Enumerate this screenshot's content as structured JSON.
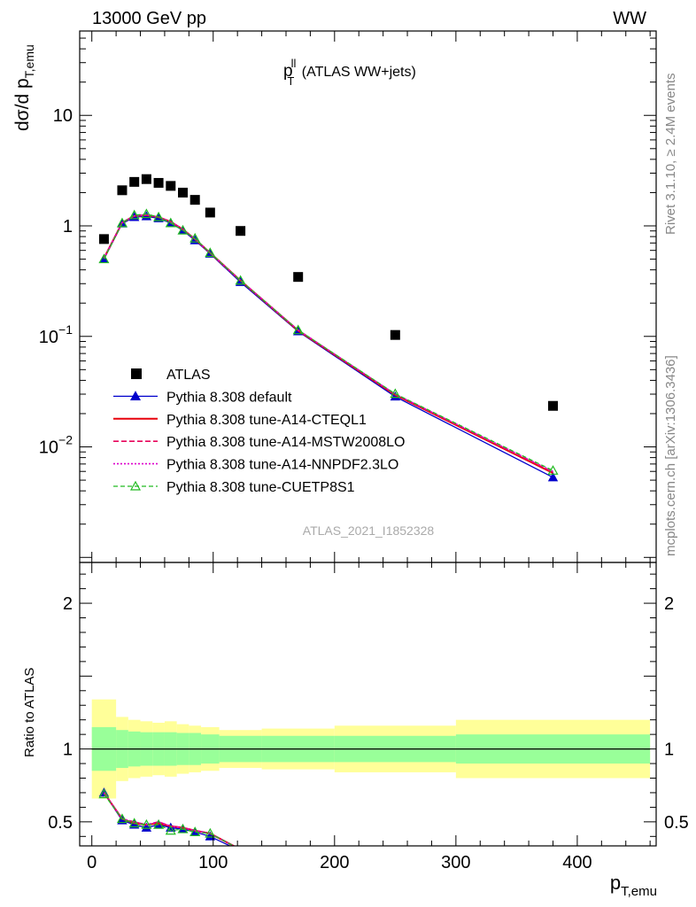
{
  "header": {
    "energy_label": "13000 GeV pp",
    "process_label": "WW"
  },
  "side_labels": {
    "rivet": "Rivet 3.1.10, ≥ 2.4M events",
    "mcplots": "mcplots.cern.ch [arXiv:1306.3436]"
  },
  "watermark": "ATLAS_2021_I1852328",
  "plot_title": {
    "main": "p",
    "sup": "ll",
    "sub": "T",
    "rest": " (ATLAS WW+jets)"
  },
  "colors": {
    "data": "#000000",
    "default": "#0000cc",
    "a14_cteql1": "#e8000b",
    "a14_mstw": "#e8005a",
    "a14_nnpdf": "#dd00cc",
    "cuetp8s1": "#22bb22",
    "band_inner": "#99ff99",
    "band_outer": "#ffff99"
  },
  "chart_data": [
    {
      "type": "line",
      "panel": "main",
      "y_scale": "log",
      "ylabel": {
        "main": "dσ/d p",
        "sub": "T,emu"
      },
      "xlim": [
        -10,
        465
      ],
      "ylim": [
        0.0009,
        58
      ],
      "y_tick_labels": [
        {
          "value": 0.01,
          "base": "10",
          "exp": "−2"
        },
        {
          "value": 0.1,
          "base": "10",
          "exp": "−1"
        },
        {
          "value": 1,
          "base": "1",
          "exp": ""
        },
        {
          "value": 10,
          "base": "10",
          "exp": ""
        }
      ],
      "legend": {
        "placement": "center-left"
      },
      "series": [
        {
          "name": "ATLAS",
          "key": "data",
          "style": "square",
          "x": [
            10,
            25,
            35,
            45,
            55,
            65,
            75,
            85,
            97.5,
            122.5,
            170,
            250,
            380
          ],
          "y": [
            0.76,
            2.1,
            2.5,
            2.65,
            2.45,
            2.3,
            2.0,
            1.72,
            1.32,
            0.9,
            0.345,
            0.103,
            0.0235
          ]
        },
        {
          "name": "Pythia 8.308 default",
          "key": "default",
          "style": "solid-triangle",
          "x": [
            10,
            25,
            35,
            45,
            55,
            65,
            75,
            85,
            97.5,
            122.5,
            170,
            250,
            380
          ],
          "y": [
            0.5,
            1.05,
            1.2,
            1.22,
            1.17,
            1.06,
            0.91,
            0.74,
            0.56,
            0.31,
            0.111,
            0.0285,
            0.0053
          ]
        },
        {
          "name": "Pythia 8.308 tune-A14-CTEQL1",
          "key": "a14_cteql1",
          "style": "solid",
          "x": [
            10,
            25,
            35,
            45,
            55,
            65,
            75,
            85,
            97.5,
            122.5,
            170,
            250,
            380
          ],
          "y": [
            0.51,
            1.07,
            1.23,
            1.25,
            1.2,
            1.09,
            0.93,
            0.76,
            0.57,
            0.32,
            0.113,
            0.0295,
            0.0058
          ]
        },
        {
          "name": "Pythia 8.308 tune-A14-MSTW2008LO",
          "key": "a14_mstw",
          "style": "dashed",
          "x": [
            10,
            25,
            35,
            45,
            55,
            65,
            75,
            85,
            97.5,
            122.5,
            170,
            250,
            380
          ],
          "y": [
            0.51,
            1.07,
            1.23,
            1.25,
            1.2,
            1.09,
            0.93,
            0.76,
            0.57,
            0.32,
            0.114,
            0.0298,
            0.0059
          ]
        },
        {
          "name": "Pythia 8.308 tune-A14-NNPDF2.3LO",
          "key": "a14_nnpdf",
          "style": "dotted",
          "x": [
            10,
            25,
            35,
            45,
            55,
            65,
            75,
            85,
            97.5,
            122.5,
            170,
            250,
            380
          ],
          "y": [
            0.51,
            1.07,
            1.23,
            1.26,
            1.2,
            1.09,
            0.93,
            0.76,
            0.57,
            0.32,
            0.114,
            0.03,
            0.006
          ]
        },
        {
          "name": "Pythia 8.308 tune-CUETP8S1",
          "key": "cuetp8s1",
          "style": "dashed-open-triangle",
          "x": [
            10,
            25,
            35,
            45,
            55,
            65,
            75,
            85,
            97.5,
            122.5,
            170,
            250,
            380
          ],
          "y": [
            0.5,
            1.06,
            1.25,
            1.28,
            1.2,
            1.06,
            0.91,
            0.77,
            0.57,
            0.32,
            0.114,
            0.0302,
            0.0061
          ]
        }
      ]
    },
    {
      "type": "line",
      "panel": "ratio",
      "ylabel": "Ratio to ATLAS",
      "xlabel": {
        "main": "p",
        "sub": "T,emu"
      },
      "xlim": [
        -10,
        465
      ],
      "ylim": [
        0.335,
        2.28
      ],
      "x_ticks": [
        0,
        100,
        200,
        300,
        400
      ],
      "y_ticks": [
        0.5,
        1,
        2
      ],
      "bands": {
        "edges": [
          0,
          20,
          30,
          40,
          50,
          60,
          70,
          80,
          90,
          105,
          140,
          200,
          300,
          460
        ],
        "inner_low": [
          0.85,
          0.87,
          0.88,
          0.885,
          0.885,
          0.885,
          0.89,
          0.89,
          0.9,
          0.91,
          0.91,
          0.91,
          0.9
        ],
        "inner_high": [
          1.15,
          1.13,
          1.12,
          1.115,
          1.115,
          1.115,
          1.11,
          1.11,
          1.1,
          1.09,
          1.09,
          1.09,
          1.1
        ],
        "outer_low": [
          0.66,
          0.78,
          0.8,
          0.81,
          0.82,
          0.81,
          0.83,
          0.84,
          0.85,
          0.87,
          0.86,
          0.84,
          0.8
        ],
        "outer_high": [
          1.34,
          1.22,
          1.2,
          1.19,
          1.18,
          1.19,
          1.17,
          1.16,
          1.15,
          1.13,
          1.14,
          1.16,
          1.2
        ]
      },
      "series": [
        {
          "name": "Pythia 8.308 default",
          "key": "default",
          "style": "solid-triangle",
          "x": [
            10,
            25,
            35,
            45,
            55,
            65,
            75,
            85,
            97.5,
            122.5
          ],
          "y": [
            0.7,
            0.51,
            0.48,
            0.46,
            0.48,
            0.46,
            0.45,
            0.43,
            0.4,
            0.3
          ]
        },
        {
          "name": "Pythia 8.308 tune-A14-CTEQL1",
          "key": "a14_cteql1",
          "style": "solid",
          "x": [
            10,
            25,
            35,
            45,
            55,
            65,
            75,
            85,
            97.5,
            122.5
          ],
          "y": [
            0.7,
            0.52,
            0.49,
            0.48,
            0.49,
            0.47,
            0.46,
            0.44,
            0.42,
            0.31
          ]
        },
        {
          "name": "Pythia 8.308 tune-A14-MSTW2008LO",
          "key": "a14_mstw",
          "style": "dashed",
          "x": [
            10,
            25,
            35,
            45,
            55,
            65,
            75,
            85,
            97.5,
            122.5
          ],
          "y": [
            0.7,
            0.52,
            0.5,
            0.48,
            0.5,
            0.47,
            0.46,
            0.44,
            0.42,
            0.31
          ]
        },
        {
          "name": "Pythia 8.308 tune-A14-NNPDF2.3LO",
          "key": "a14_nnpdf",
          "style": "dotted",
          "x": [
            10,
            25,
            35,
            45,
            55,
            65,
            75,
            85,
            97.5,
            122.5
          ],
          "y": [
            0.7,
            0.52,
            0.5,
            0.48,
            0.5,
            0.47,
            0.46,
            0.44,
            0.42,
            0.31
          ]
        },
        {
          "name": "Pythia 8.308 tune-CUETP8S1",
          "key": "cuetp8s1",
          "style": "dashed-open-triangle",
          "x": [
            10,
            25,
            35,
            45,
            55,
            65,
            75,
            85,
            97.5,
            122.5
          ],
          "y": [
            0.69,
            0.52,
            0.49,
            0.48,
            0.48,
            0.44,
            0.45,
            0.43,
            0.42,
            0.31
          ]
        }
      ]
    }
  ]
}
